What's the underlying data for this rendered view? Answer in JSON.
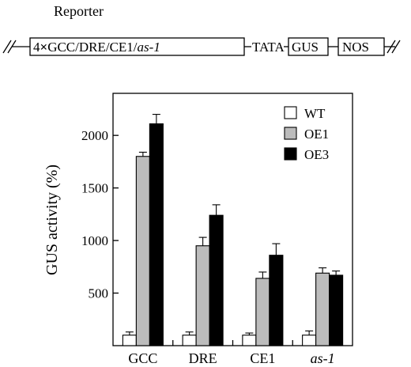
{
  "construct": {
    "title": "Reporter",
    "promoter_count": "4",
    "promoter_cross": "×",
    "promoter_elements": "GCC/DRE/CE1/",
    "promoter_last_element": "as-1",
    "tata": "TATA",
    "gus": "GUS",
    "nos": "NOS"
  },
  "chart_data": {
    "type": "bar",
    "ylabel": "GUS activity (%)",
    "xlabel": "",
    "ylim": [
      0,
      2400
    ],
    "yticks": [
      500,
      1000,
      1500,
      2000
    ],
    "categories": [
      "GCC",
      "DRE",
      "CE1",
      "as-1"
    ],
    "italic_categories": [
      false,
      false,
      false,
      true
    ],
    "legend_position": "top-right",
    "series": [
      {
        "name": "WT",
        "color": "#ffffff",
        "values": [
          100,
          100,
          100,
          100
        ],
        "errors": [
          30,
          30,
          20,
          40
        ]
      },
      {
        "name": "OE1",
        "color": "#bcbcbc",
        "values": [
          1800,
          950,
          640,
          690
        ],
        "errors": [
          40,
          80,
          60,
          50
        ]
      },
      {
        "name": "OE3",
        "color": "#000000",
        "values": [
          2110,
          1240,
          860,
          670
        ],
        "errors": [
          90,
          100,
          110,
          40
        ]
      }
    ]
  }
}
